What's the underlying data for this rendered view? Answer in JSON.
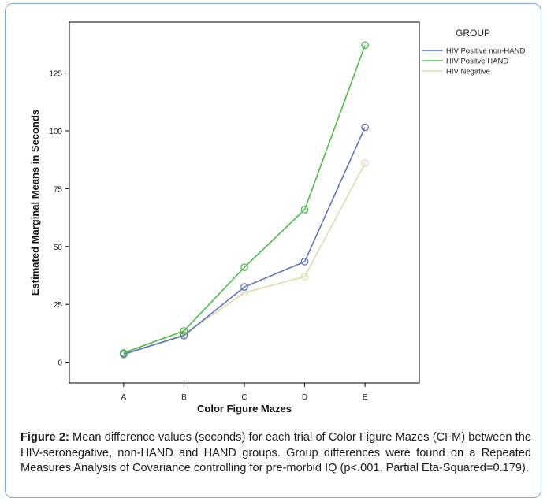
{
  "chart_data": {
    "type": "line",
    "xlabel": "Color Figure Mazes",
    "ylabel": "Estimated Marginal Means in Seconds",
    "categories": [
      "A",
      "B",
      "C",
      "D",
      "E"
    ],
    "yticks": [
      "0",
      "25",
      "50",
      "75",
      "100",
      "125"
    ],
    "ylim": [
      -9,
      147
    ],
    "grid": false,
    "legend": {
      "title": "GROUP",
      "position": "top-right"
    },
    "series": [
      {
        "name": "HIV Positive non-HAND",
        "color": "#5b73c4",
        "values": [
          3.5,
          11.5,
          32.5,
          43.5,
          101.5
        ]
      },
      {
        "name": "HIV Positve HAND",
        "color": "#4cbc49",
        "values": [
          4,
          13.5,
          41,
          66,
          137
        ]
      },
      {
        "name": "HIV Negative",
        "color": "#e0dab0",
        "values": [
          3,
          12,
          30,
          37,
          86
        ]
      }
    ]
  },
  "caption": {
    "label": "Figure 2:",
    "text": "Mean difference values (seconds) for each trial of Color Figure Mazes (CFM) between the HIV-seronegative, non-HAND and HAND groups.  Group differences were found on a Repeated Measures Analysis of Covariance controlling for pre-morbid IQ (p<.001, Partial Eta-Squared=0.179)."
  }
}
